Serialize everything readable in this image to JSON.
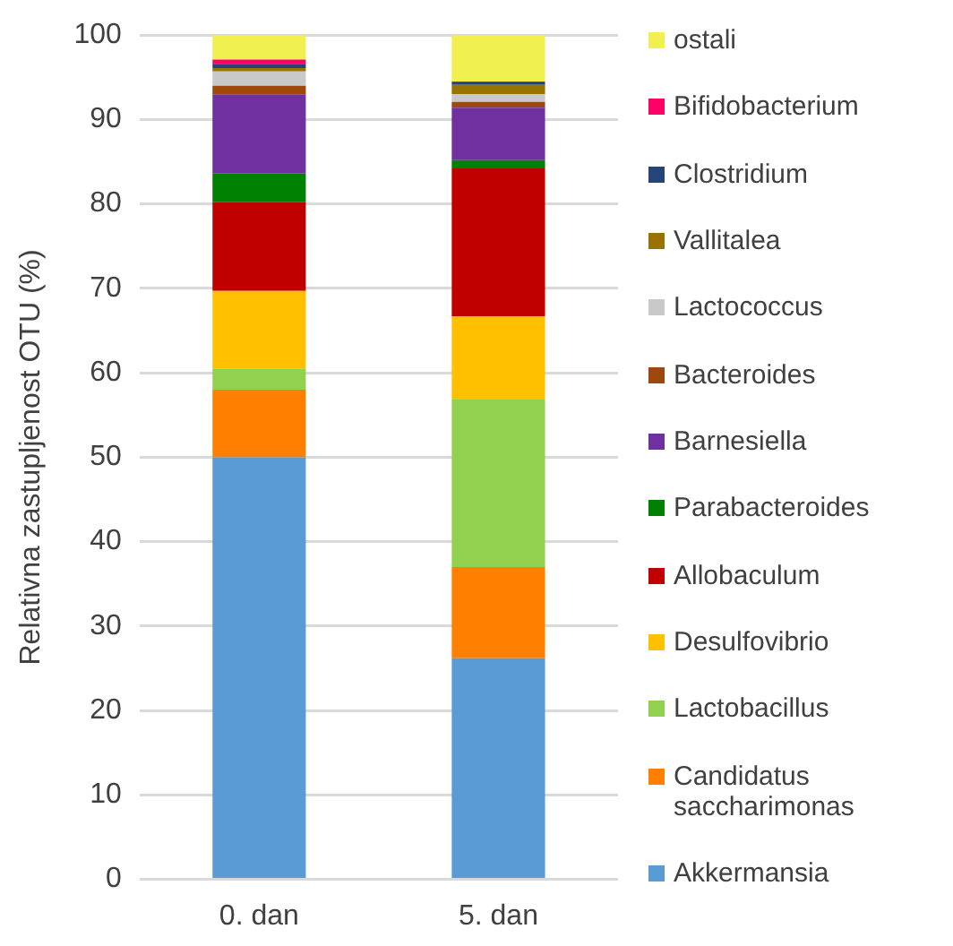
{
  "chart_data": {
    "type": "bar",
    "stacked": true,
    "ylabel": "Relativna zastupljenost OTU (%)",
    "categories": [
      "0. dan",
      "5. dan"
    ],
    "ylim": [
      0,
      100
    ],
    "yticks": [
      0,
      10,
      20,
      30,
      40,
      50,
      60,
      70,
      80,
      90,
      100
    ],
    "grid": "y",
    "legend": "right",
    "series": [
      {
        "name": "Akkermansia",
        "color": "#5b9bd5",
        "values": [
          50,
          26.2
        ]
      },
      {
        "name": "Candidatus saccharimonas",
        "color": "#ff8000",
        "values": [
          8,
          10.8
        ]
      },
      {
        "name": "Lactobacillus",
        "color": "#92d050",
        "values": [
          2.5,
          19.9
        ]
      },
      {
        "name": "Desulfovibrio",
        "color": "#ffc000",
        "values": [
          9.2,
          9.8
        ]
      },
      {
        "name": "Allobaculum",
        "color": "#c00000",
        "values": [
          10.5,
          17.5
        ]
      },
      {
        "name": "Parabacteroides",
        "color": "#008000",
        "values": [
          3.4,
          1
        ]
      },
      {
        "name": "Barnesiella",
        "color": "#7030a0",
        "values": [
          9.4,
          6.2
        ]
      },
      {
        "name": "Bacteroides",
        "color": "#9e480e",
        "values": [
          1,
          0.7
        ]
      },
      {
        "name": "Lactococcus",
        "color": "#c9c9c9",
        "values": [
          1.7,
          0.9
        ]
      },
      {
        "name": "Vallitalea",
        "color": "#997300",
        "values": [
          0.4,
          1.1
        ]
      },
      {
        "name": "Clostridium",
        "color": "#264478",
        "values": [
          0.5,
          0.3
        ]
      },
      {
        "name": "Bifidobacterium",
        "color": "#ff0066",
        "values": [
          0.5,
          0.1
        ]
      },
      {
        "name": "ostali",
        "color": "#f0f050",
        "values": [
          2.9,
          5.5
        ]
      }
    ]
  }
}
